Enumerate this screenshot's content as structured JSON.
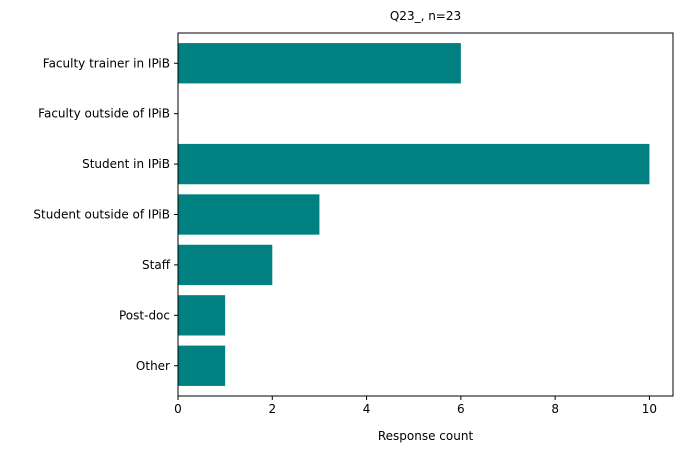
{
  "chart_data": {
    "type": "bar",
    "orientation": "horizontal",
    "title": "Q23_, n=23",
    "xlabel": "Response count",
    "ylabel": "",
    "categories": [
      "Faculty trainer in IPiB",
      "Faculty outside of IPiB",
      "Student in IPiB",
      "Student outside of IPiB",
      "Staff",
      "Post-doc",
      "Other"
    ],
    "values": [
      6,
      0,
      10,
      3,
      2,
      1,
      1
    ],
    "xlim": [
      0,
      10.5
    ],
    "xticks": [
      0,
      2,
      4,
      6,
      8,
      10
    ],
    "grid": false,
    "legend": "none",
    "bar_color": "#008080"
  }
}
